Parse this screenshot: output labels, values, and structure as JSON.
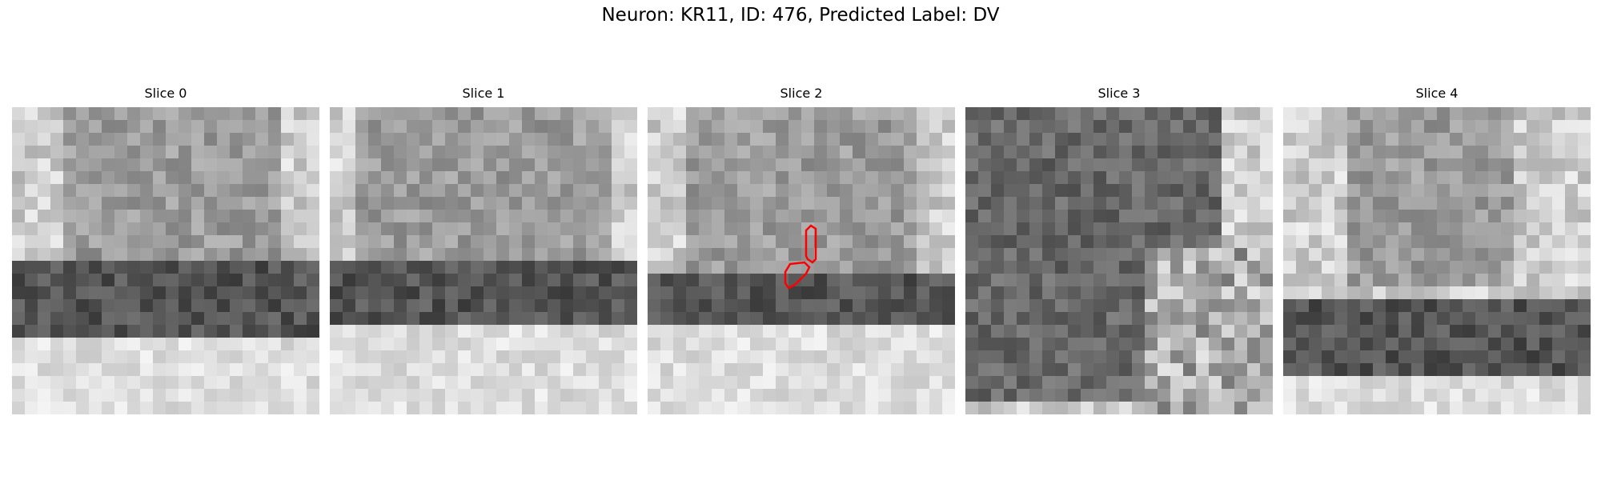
{
  "figure": {
    "title": "Neuron: KR11, ID: 476, Predicted Label: DV"
  },
  "panels": [
    {
      "title": "Slice 0",
      "band": "middle",
      "has_contour": false
    },
    {
      "title": "Slice 1",
      "band": "middle",
      "has_contour": false
    },
    {
      "title": "Slice 2",
      "band": "middle",
      "has_contour": true
    },
    {
      "title": "Slice 3",
      "band": "none",
      "has_contour": false
    },
    {
      "title": "Slice 4",
      "band": "low",
      "has_contour": false
    }
  ],
  "colors": {
    "contour": "#ff0000",
    "colormap": "gray"
  }
}
